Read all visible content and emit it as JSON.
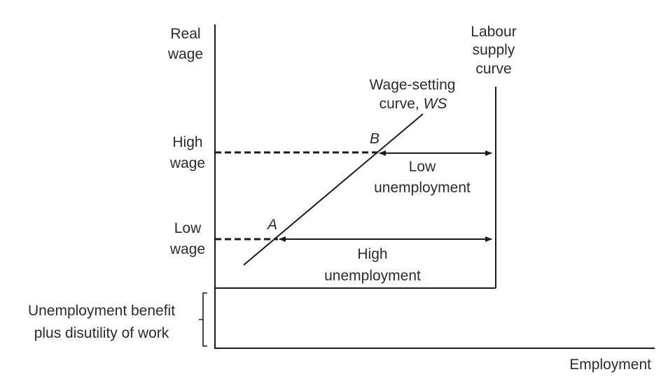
{
  "axes": {
    "y_label_line1": "Real",
    "y_label_line2": "wage",
    "x_label": "Employment"
  },
  "wage_levels": {
    "high_line1": "High",
    "high_line2": "wage",
    "low_line1": "Low",
    "low_line2": "wage"
  },
  "curves": {
    "labour_supply_line1": "Labour",
    "labour_supply_line2": "supply",
    "labour_supply_line3": "curve",
    "wage_setting_line1": "Wage-setting",
    "wage_setting_line2_prefix": "curve,",
    "wage_setting_abbrev": "WS"
  },
  "points": {
    "a": "A",
    "b": "B"
  },
  "gaps": {
    "low_unemployment_line1": "Low",
    "low_unemployment_line2": "unemployment",
    "high_unemployment_line1": "High",
    "high_unemployment_line2": "unemployment"
  },
  "floor": {
    "line1": "Unemployment benefit",
    "line2": "plus disutility of work"
  }
}
